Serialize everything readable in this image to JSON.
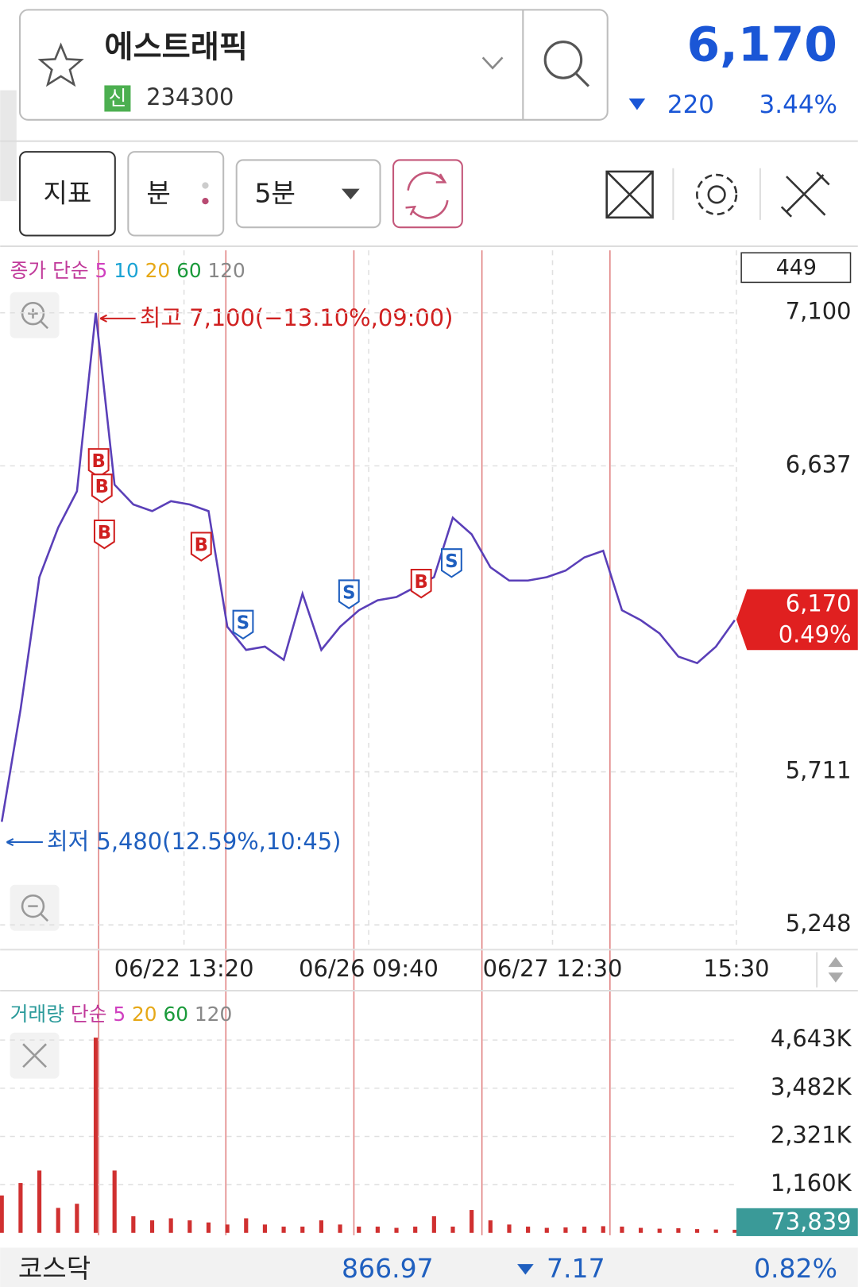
{
  "header": {
    "name": "에스트래픽",
    "badge": "신",
    "code": "234300",
    "price": "6,170",
    "change": "220",
    "change_pct": "3.44%"
  },
  "toolbar": {
    "indicator": "지표",
    "period_type": "분",
    "interval": "5분"
  },
  "price_chart": {
    "type": "line",
    "legend": {
      "label": "종가 단순",
      "ma": [
        "5",
        "10",
        "20",
        "60",
        "120"
      ]
    },
    "box_value": "449",
    "high_note": "최고 7,100(−13.10%,09:00)",
    "low_note": "최저 5,480(12.59%,10:45)",
    "current": {
      "price": "6,170",
      "pct": "0.49%"
    },
    "color": "#5a3fb8",
    "ylim": [
      5178,
      7289
    ],
    "yticks": [
      {
        "value": 7100,
        "label": "7,100"
      },
      {
        "value": 6637,
        "label": "6,637"
      },
      {
        "value": 5711,
        "label": "5,711"
      },
      {
        "value": 5248,
        "label": "5,248"
      }
    ],
    "xticks": [
      "06/22 13:20",
      "06/26 09:40",
      "06/27 12:30",
      "15:30"
    ],
    "values": [
      5560,
      5900,
      6300,
      6450,
      6560,
      7100,
      6580,
      6520,
      6500,
      6530,
      6520,
      6500,
      6150,
      6080,
      6090,
      6050,
      6250,
      6080,
      6150,
      6200,
      6230,
      6240,
      6270,
      6300,
      6480,
      6430,
      6330,
      6290,
      6290,
      6300,
      6320,
      6360,
      6380,
      6200,
      6170,
      6130,
      6060,
      6040,
      6090,
      6170
    ],
    "signals": [
      "B",
      "B",
      "B",
      "B",
      "S",
      "S",
      "B",
      "S"
    ]
  },
  "volume_chart": {
    "type": "bar",
    "legend": {
      "label": "거래량",
      "method": "단순",
      "ma": [
        "5",
        "20",
        "60",
        "120"
      ]
    },
    "current": "73,839",
    "color": "#d03030",
    "ylim": [
      0,
      5771000
    ],
    "yticks": [
      {
        "value": 4643000,
        "label": "4,643K"
      },
      {
        "value": 3482000,
        "label": "3,482K"
      },
      {
        "value": 2321000,
        "label": "2,321K"
      },
      {
        "value": 1160000,
        "label": "1,160K"
      }
    ],
    "values": [
      900000,
      1200000,
      1500000,
      600000,
      700000,
      4700000,
      1500000,
      400000,
      300000,
      350000,
      300000,
      250000,
      200000,
      350000,
      200000,
      150000,
      150000,
      300000,
      200000,
      150000,
      150000,
      120000,
      150000,
      400000,
      150000,
      550000,
      300000,
      200000,
      150000,
      120000,
      130000,
      150000,
      160000,
      150000,
      120000,
      100000,
      110000,
      90000,
      80000,
      73839
    ]
  },
  "footer": {
    "index_name": "코스닥",
    "index_value": "866.97",
    "index_change": "7.17",
    "index_pct": "0.82%"
  }
}
